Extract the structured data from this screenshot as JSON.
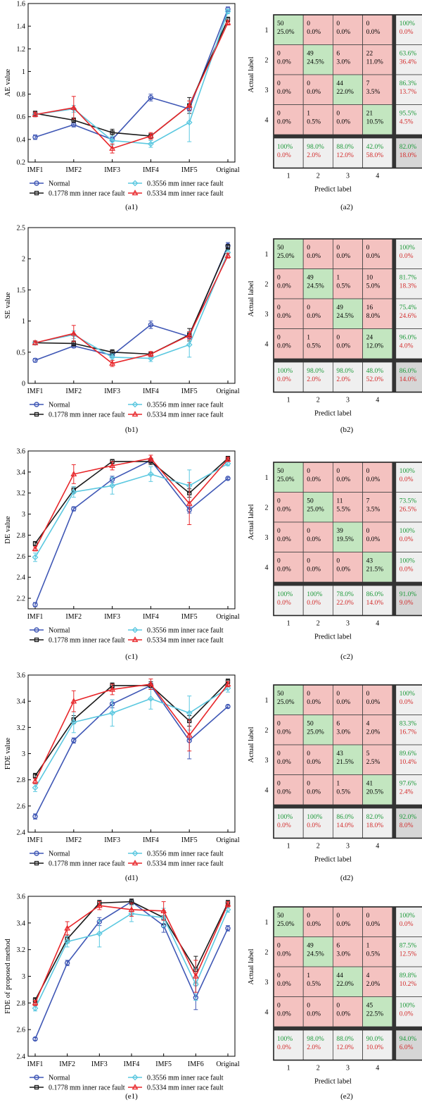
{
  "legend_series": [
    "Normal",
    "0.1778 mm inner race fault",
    "0.3556 mm inner race fault",
    "0.5334 mm inner race fault"
  ],
  "colors": {
    "Normal": "#3f57b5",
    "0.1778 mm inner race fault": "#1a1a1a",
    "0.3556 mm inner race fault": "#5bc8e0",
    "0.5334 mm inner race fault": "#e8262a",
    "correct_bg": "#c3e6c0",
    "wrong_bg": "#f4c2c0",
    "summary_bg": "#efefef",
    "total_bg": "#d6d6d6",
    "good_text": "#1d9a3a",
    "bad_text": "#d32a2a"
  },
  "chart_data": [
    {
      "id": "a1",
      "type": "line",
      "caption": "(a1)",
      "ylabel": "AE value",
      "ylim": [
        0.2,
        1.6
      ],
      "yticks": [
        "0.2",
        "0.4",
        "0.6",
        "0.8",
        "1",
        "1.2",
        "1.4",
        "1.6"
      ],
      "categories": [
        "IMF1",
        "IMF2",
        "IMF3",
        "IMF4",
        "IMF5",
        "Original"
      ],
      "series": [
        {
          "name": "Normal",
          "values": [
            0.42,
            0.53,
            0.4,
            0.77,
            0.67,
            1.55
          ],
          "err": [
            0.02,
            0.02,
            0.02,
            0.03,
            0.02,
            0.02
          ]
        },
        {
          "name": "0.1778 mm inner race fault",
          "values": [
            0.63,
            0.57,
            0.46,
            0.43,
            0.7,
            1.46
          ],
          "err": [
            0.02,
            0.02,
            0.03,
            0.02,
            0.07,
            0.02
          ]
        },
        {
          "name": "0.3556 mm inner race fault",
          "values": [
            0.62,
            0.67,
            0.39,
            0.36,
            0.55,
            1.53
          ],
          "err": [
            0.02,
            0.03,
            0.04,
            0.03,
            0.17,
            0.02
          ]
        },
        {
          "name": "0.5334 mm inner race fault",
          "values": [
            0.62,
            0.68,
            0.32,
            0.43,
            0.7,
            1.43
          ],
          "err": [
            0.02,
            0.1,
            0.04,
            0.03,
            0.04,
            0.02
          ]
        }
      ]
    },
    {
      "id": "a2",
      "type": "heatmap",
      "caption": "(a2)",
      "xlabel": "Predict label",
      "ylabel": "Actual label",
      "labels": [
        "1",
        "2",
        "3",
        "4"
      ],
      "counts": [
        [
          "50",
          "0",
          "0",
          "0"
        ],
        [
          "0",
          "49",
          "6",
          "22"
        ],
        [
          "0",
          "0",
          "44",
          "7"
        ],
        [
          "0",
          "1",
          "0",
          "21"
        ]
      ],
      "percents": [
        [
          "25.0%",
          "0.0%",
          "0.0%",
          "0.0%"
        ],
        [
          "0.0%",
          "24.5%",
          "3.0%",
          "11.0%"
        ],
        [
          "0.0%",
          "0.0%",
          "22.0%",
          "3.5%"
        ],
        [
          "0.0%",
          "0.5%",
          "0.0%",
          "10.5%"
        ]
      ],
      "row_summary": [
        [
          "100%",
          "0.0%"
        ],
        [
          "63.6%",
          "36.4%"
        ],
        [
          "86.3%",
          "13.7%"
        ],
        [
          "95.5%",
          "4.5%"
        ]
      ],
      "col_summary": [
        [
          "100%",
          "0.0%"
        ],
        [
          "98.0%",
          "2.0%"
        ],
        [
          "88.0%",
          "12.0%"
        ],
        [
          "42.0%",
          "58.0%"
        ]
      ],
      "total": [
        "82.0%",
        "18.0%"
      ]
    },
    {
      "id": "b1",
      "type": "line",
      "caption": "(b1)",
      "ylabel": "SE value",
      "ylim": [
        0,
        2.5
      ],
      "yticks": [
        "0",
        "0.5",
        "1",
        "1.5",
        "2",
        "2.5"
      ],
      "categories": [
        "IMF1",
        "IMF2",
        "IMF3",
        "IMF4",
        "IMF5",
        "Original"
      ],
      "series": [
        {
          "name": "Normal",
          "values": [
            0.37,
            0.6,
            0.45,
            0.94,
            0.75,
            2.21
          ],
          "err": [
            0.03,
            0.03,
            0.03,
            0.06,
            0.04,
            0.05
          ]
        },
        {
          "name": "0.1778 mm inner race fault",
          "values": [
            0.65,
            0.64,
            0.5,
            0.47,
            0.78,
            2.19
          ],
          "err": [
            0.03,
            0.04,
            0.04,
            0.03,
            0.1,
            0.04
          ]
        },
        {
          "name": "0.3556 mm inner race fault",
          "values": [
            0.65,
            0.78,
            0.42,
            0.4,
            0.62,
            2.1
          ],
          "err": [
            0.03,
            0.06,
            0.05,
            0.05,
            0.2,
            0.04
          ]
        },
        {
          "name": "0.5334 mm inner race fault",
          "values": [
            0.65,
            0.8,
            0.32,
            0.47,
            0.77,
            2.05
          ],
          "err": [
            0.03,
            0.13,
            0.05,
            0.04,
            0.06,
            0.04
          ]
        }
      ]
    },
    {
      "id": "b2",
      "type": "heatmap",
      "caption": "(b2)",
      "xlabel": "Predict label",
      "ylabel": "Actual label",
      "labels": [
        "1",
        "2",
        "3",
        "4"
      ],
      "counts": [
        [
          "50",
          "0",
          "0",
          "0"
        ],
        [
          "0",
          "49",
          "1",
          "10"
        ],
        [
          "0",
          "0",
          "49",
          "16"
        ],
        [
          "0",
          "1",
          "0",
          "24"
        ]
      ],
      "percents": [
        [
          "25.0%",
          "0.0%",
          "0.0%",
          "0.0%"
        ],
        [
          "0.0%",
          "24.5%",
          "0.5%",
          "5.0%"
        ],
        [
          "0.0%",
          "0.0%",
          "24.5%",
          "8.0%"
        ],
        [
          "0.0%",
          "0.5%",
          "0.0%",
          "12.0%"
        ]
      ],
      "row_summary": [
        [
          "100%",
          "0.0%"
        ],
        [
          "81.7%",
          "18.3%"
        ],
        [
          "75.4%",
          "24.6%"
        ],
        [
          "96.0%",
          "4.0%"
        ]
      ],
      "col_summary": [
        [
          "100%",
          "0.0%"
        ],
        [
          "98.0%",
          "2.0%"
        ],
        [
          "98.0%",
          "2.0%"
        ],
        [
          "48.0%",
          "52.0%"
        ]
      ],
      "total": [
        "86.0%",
        "14.0%"
      ]
    },
    {
      "id": "c1",
      "type": "line",
      "caption": "(c1)",
      "ylabel": "DE value",
      "ylim": [
        2.1,
        3.6
      ],
      "yticks": [
        "2.2",
        "2.4",
        "2.6",
        "2.8",
        "3",
        "3.2",
        "3.4",
        "3.6"
      ],
      "categories": [
        "IMF1",
        "IMF2",
        "IMF3",
        "IMF4",
        "IMF5",
        "Original"
      ],
      "series": [
        {
          "name": "Normal",
          "values": [
            2.14,
            3.05,
            3.33,
            3.51,
            3.04,
            3.34
          ],
          "err": [
            0.02,
            0.02,
            0.03,
            0.02,
            0.03,
            0.01
          ]
        },
        {
          "name": "0.1778 mm inner race fault",
          "values": [
            2.72,
            3.23,
            3.5,
            3.5,
            3.2,
            3.53
          ],
          "err": [
            0.02,
            0.03,
            0.02,
            0.03,
            0.04,
            0.02
          ]
        },
        {
          "name": "0.3556 mm inner race fault",
          "values": [
            2.59,
            3.21,
            3.27,
            3.38,
            3.27,
            3.48
          ],
          "err": [
            0.04,
            0.05,
            0.08,
            0.07,
            0.15,
            0.02
          ]
        },
        {
          "name": "0.5334 mm inner race fault",
          "values": [
            2.67,
            3.38,
            3.46,
            3.53,
            3.1,
            3.52
          ],
          "err": [
            0.02,
            0.09,
            0.04,
            0.03,
            0.2,
            0.02
          ]
        }
      ]
    },
    {
      "id": "c2",
      "type": "heatmap",
      "caption": "(c2)",
      "xlabel": "Predict label",
      "ylabel": "Actual label",
      "labels": [
        "1",
        "2",
        "3",
        "4"
      ],
      "counts": [
        [
          "50",
          "0",
          "0",
          "0"
        ],
        [
          "0",
          "50",
          "11",
          "7"
        ],
        [
          "0",
          "0",
          "39",
          "0"
        ],
        [
          "0",
          "0",
          "0",
          "43"
        ]
      ],
      "percents": [
        [
          "25.0%",
          "0.0%",
          "0.0%",
          "0.0%"
        ],
        [
          "0.0%",
          "25.0%",
          "5.5%",
          "3.5%"
        ],
        [
          "0.0%",
          "0.0%",
          "19.5%",
          "0.0%"
        ],
        [
          "0.0%",
          "0.0%",
          "0.0%",
          "21.5%"
        ]
      ],
      "row_summary": [
        [
          "100%",
          "0.0%"
        ],
        [
          "73.5%",
          "26.5%"
        ],
        [
          "100%",
          "0.0%"
        ],
        [
          "100%",
          "0.0%"
        ]
      ],
      "col_summary": [
        [
          "100%",
          "0.0%"
        ],
        [
          "100%",
          "0.0%"
        ],
        [
          "78.0%",
          "22.0%"
        ],
        [
          "86.0%",
          "14.0%"
        ]
      ],
      "total": [
        "91.0%",
        "9.0%"
      ]
    },
    {
      "id": "d1",
      "type": "line",
      "caption": "(d1)",
      "ylabel": "FDE value",
      "ylim": [
        2.4,
        3.6
      ],
      "yticks": [
        "2.4",
        "2.6",
        "2.8",
        "3",
        "3.2",
        "3.4",
        "3.6"
      ],
      "categories": [
        "IMF1",
        "IMF2",
        "IMF3",
        "IMF4",
        "IMF5",
        "Original"
      ],
      "series": [
        {
          "name": "Normal",
          "values": [
            2.52,
            3.1,
            3.38,
            3.52,
            3.1,
            3.36
          ],
          "err": [
            0.02,
            0.02,
            0.03,
            0.02,
            0.14,
            0.01
          ]
        },
        {
          "name": "0.1778 mm inner race fault",
          "values": [
            2.83,
            3.26,
            3.52,
            3.52,
            3.25,
            3.55
          ],
          "err": [
            0.02,
            0.03,
            0.02,
            0.03,
            0.04,
            0.02
          ]
        },
        {
          "name": "0.3556 mm inner race fault",
          "values": [
            2.74,
            3.24,
            3.31,
            3.42,
            3.31,
            3.5
          ],
          "err": [
            0.03,
            0.08,
            0.1,
            0.08,
            0.13,
            0.03
          ]
        },
        {
          "name": "0.5334 mm inner race fault",
          "values": [
            2.79,
            3.4,
            3.49,
            3.53,
            3.14,
            3.53
          ],
          "err": [
            0.02,
            0.08,
            0.04,
            0.04,
            0.12,
            0.02
          ]
        }
      ]
    },
    {
      "id": "d2",
      "type": "heatmap",
      "caption": "(d2)",
      "xlabel": "Predict label",
      "ylabel": "Actual label",
      "labels": [
        "1",
        "2",
        "3",
        "4"
      ],
      "counts": [
        [
          "50",
          "0",
          "0",
          "0"
        ],
        [
          "0",
          "50",
          "6",
          "4"
        ],
        [
          "0",
          "0",
          "43",
          "5"
        ],
        [
          "0",
          "0",
          "1",
          "41"
        ]
      ],
      "percents": [
        [
          "25.0%",
          "0.0%",
          "0.0%",
          "0.0%"
        ],
        [
          "0.0%",
          "25.0%",
          "3.0%",
          "2.0%"
        ],
        [
          "0.0%",
          "0.0%",
          "21.5%",
          "2.5%"
        ],
        [
          "0.0%",
          "0.0%",
          "0.5%",
          "20.5%"
        ]
      ],
      "row_summary": [
        [
          "100%",
          "0.0%"
        ],
        [
          "83.3%",
          "16.7%"
        ],
        [
          "89.6%",
          "10.4%"
        ],
        [
          "97.6%",
          "2.4%"
        ]
      ],
      "col_summary": [
        [
          "100%",
          "0.0%"
        ],
        [
          "100%",
          "0.0%"
        ],
        [
          "86.0%",
          "14.0%"
        ],
        [
          "82.0%",
          "18.0%"
        ]
      ],
      "total": [
        "92.0%",
        "8.0%"
      ]
    },
    {
      "id": "e1",
      "type": "line",
      "caption": "(e1)",
      "ylabel": "FDE of proposed method",
      "ylim": [
        2.4,
        3.6
      ],
      "yticks": [
        "2.4",
        "2.6",
        "2.8",
        "3",
        "3.2",
        "3.4",
        "3.6"
      ],
      "categories": [
        "IMF1",
        "IMF2",
        "IMF3",
        "IMF4",
        "IMF5",
        "IMF6",
        "Original"
      ],
      "series": [
        {
          "name": "Normal",
          "values": [
            2.53,
            3.1,
            3.41,
            3.56,
            3.38,
            2.84,
            3.36
          ],
          "err": [
            0.01,
            0.02,
            0.03,
            0.01,
            0.05,
            0.09,
            0.02
          ]
        },
        {
          "name": "0.1778 mm inner race fault",
          "values": [
            2.82,
            3.28,
            3.55,
            3.56,
            3.44,
            3.05,
            3.55
          ],
          "err": [
            0.02,
            0.03,
            0.02,
            0.02,
            0.05,
            0.1,
            0.02
          ]
        },
        {
          "name": "0.3556 mm inner race fault",
          "values": [
            2.76,
            3.26,
            3.32,
            3.47,
            3.44,
            2.94,
            3.5
          ],
          "err": [
            0.02,
            0.04,
            0.1,
            0.06,
            0.07,
            0.12,
            0.02
          ]
        },
        {
          "name": "0.5334 mm inner race fault",
          "values": [
            2.8,
            3.36,
            3.53,
            3.5,
            3.49,
            3.0,
            3.54
          ],
          "err": [
            0.02,
            0.05,
            0.03,
            0.05,
            0.07,
            0.12,
            0.02
          ]
        }
      ]
    },
    {
      "id": "e2",
      "type": "heatmap",
      "caption": "(e2)",
      "xlabel": "Predict label",
      "ylabel": "Actual label",
      "labels": [
        "1",
        "2",
        "3",
        "4"
      ],
      "counts": [
        [
          "50",
          "0",
          "0",
          "0"
        ],
        [
          "0",
          "49",
          "6",
          "1"
        ],
        [
          "0",
          "1",
          "44",
          "4"
        ],
        [
          "0",
          "0",
          "0",
          "45"
        ]
      ],
      "percents": [
        [
          "25.0%",
          "0.0%",
          "0.0%",
          "0.0%"
        ],
        [
          "0.0%",
          "24.5%",
          "3.0%",
          "0.5%"
        ],
        [
          "0.0%",
          "0.5%",
          "22.0%",
          "2.0%"
        ],
        [
          "0.0%",
          "0.0%",
          "0.0%",
          "22.5%"
        ]
      ],
      "row_summary": [
        [
          "100%",
          "0.0%"
        ],
        [
          "87.5%",
          "12.5%"
        ],
        [
          "89.8%",
          "10.2%"
        ],
        [
          "100%",
          "0.0%"
        ]
      ],
      "col_summary": [
        [
          "100%",
          "0.0%"
        ],
        [
          "98.0%",
          "2.0%"
        ],
        [
          "88.0%",
          "12.0%"
        ],
        [
          "90.0%",
          "10.0%"
        ]
      ],
      "total": [
        "94.0%",
        "6.0%"
      ]
    }
  ]
}
